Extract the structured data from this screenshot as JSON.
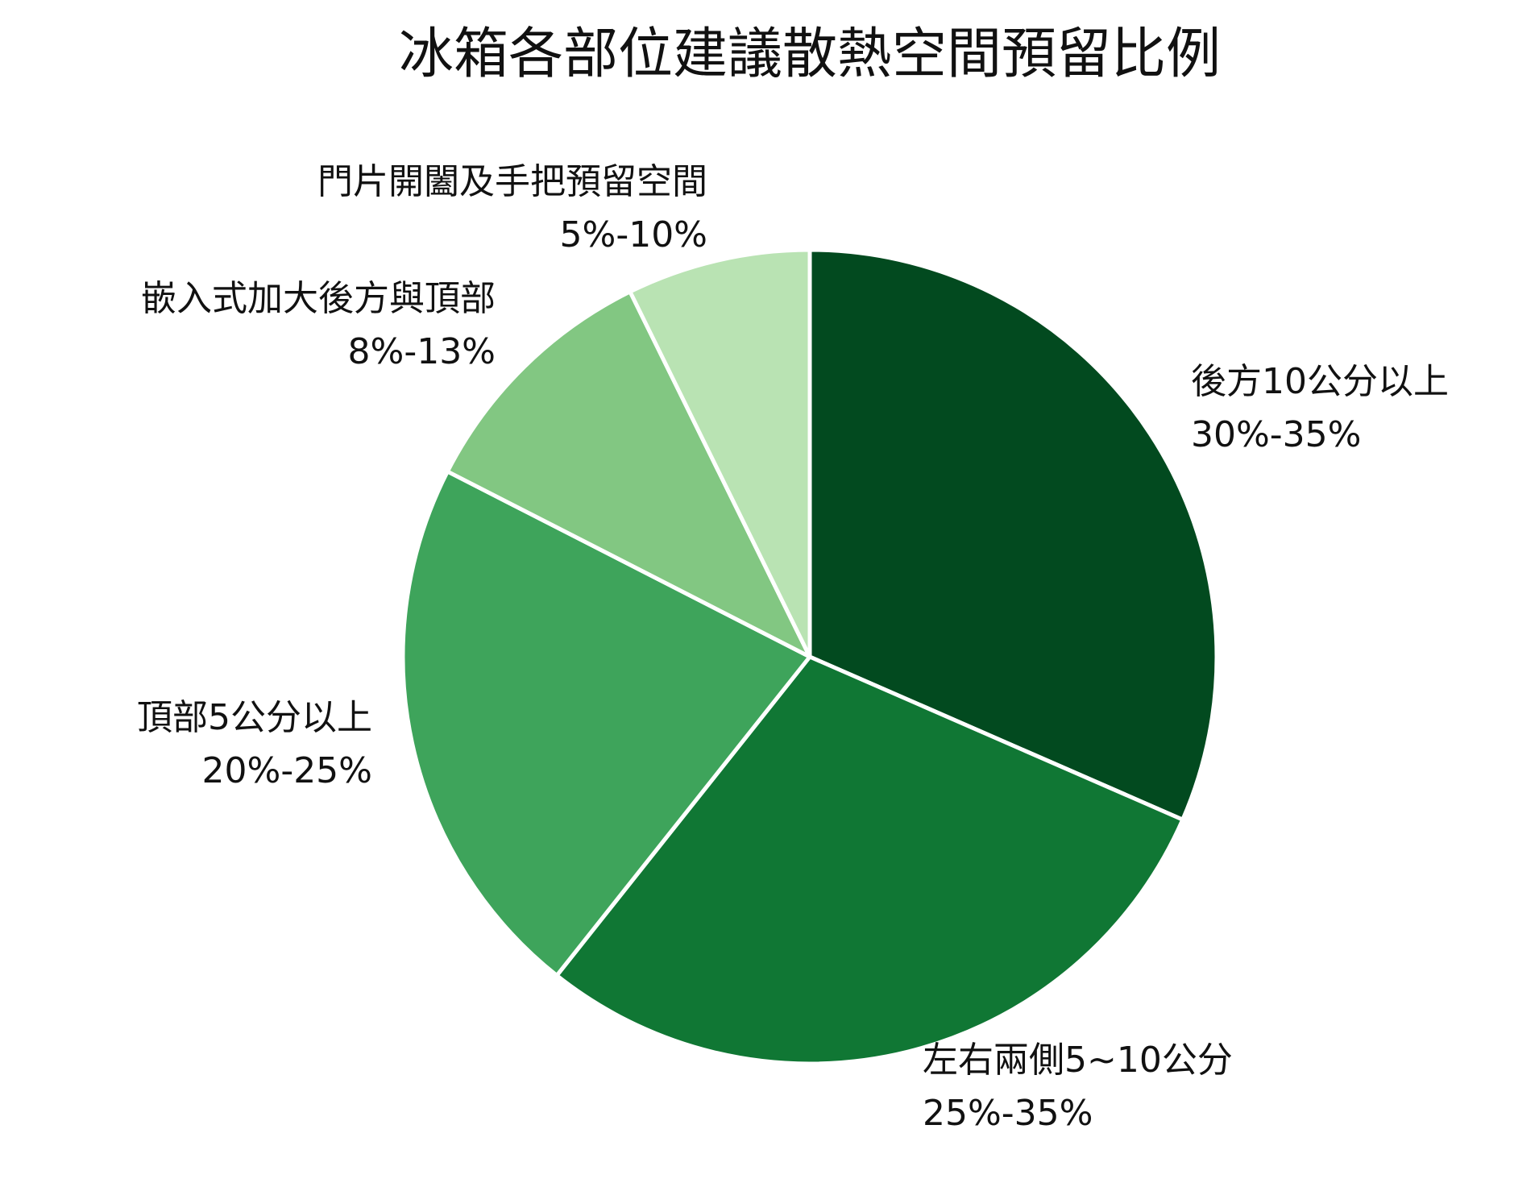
{
  "chart_data": {
    "type": "pie",
    "title": "冰箱各部位建議散熱空間預留比例",
    "start_angle": "12 o'clock",
    "direction": "clockwise",
    "slice_border_color": "#ffffff",
    "slices": [
      {
        "label": "後方10公分以上",
        "range_label": "30%-35%",
        "value": 32.5,
        "color": "#024a1f"
      },
      {
        "label": "左右兩側5~10公分",
        "range_label": "25%-35%",
        "value": 30,
        "color": "#107734"
      },
      {
        "label": "頂部5公分以上",
        "range_label": "20%-25%",
        "value": 22.5,
        "color": "#3ea45b"
      },
      {
        "label": "嵌入式加大後方與頂部",
        "range_label": "8%-13%",
        "value": 10.5,
        "color": "#82c782"
      },
      {
        "label": "門片開闔及手把預留空間",
        "range_label": "5%-10%",
        "value": 7.5,
        "color": "#b9e3b3"
      }
    ]
  }
}
